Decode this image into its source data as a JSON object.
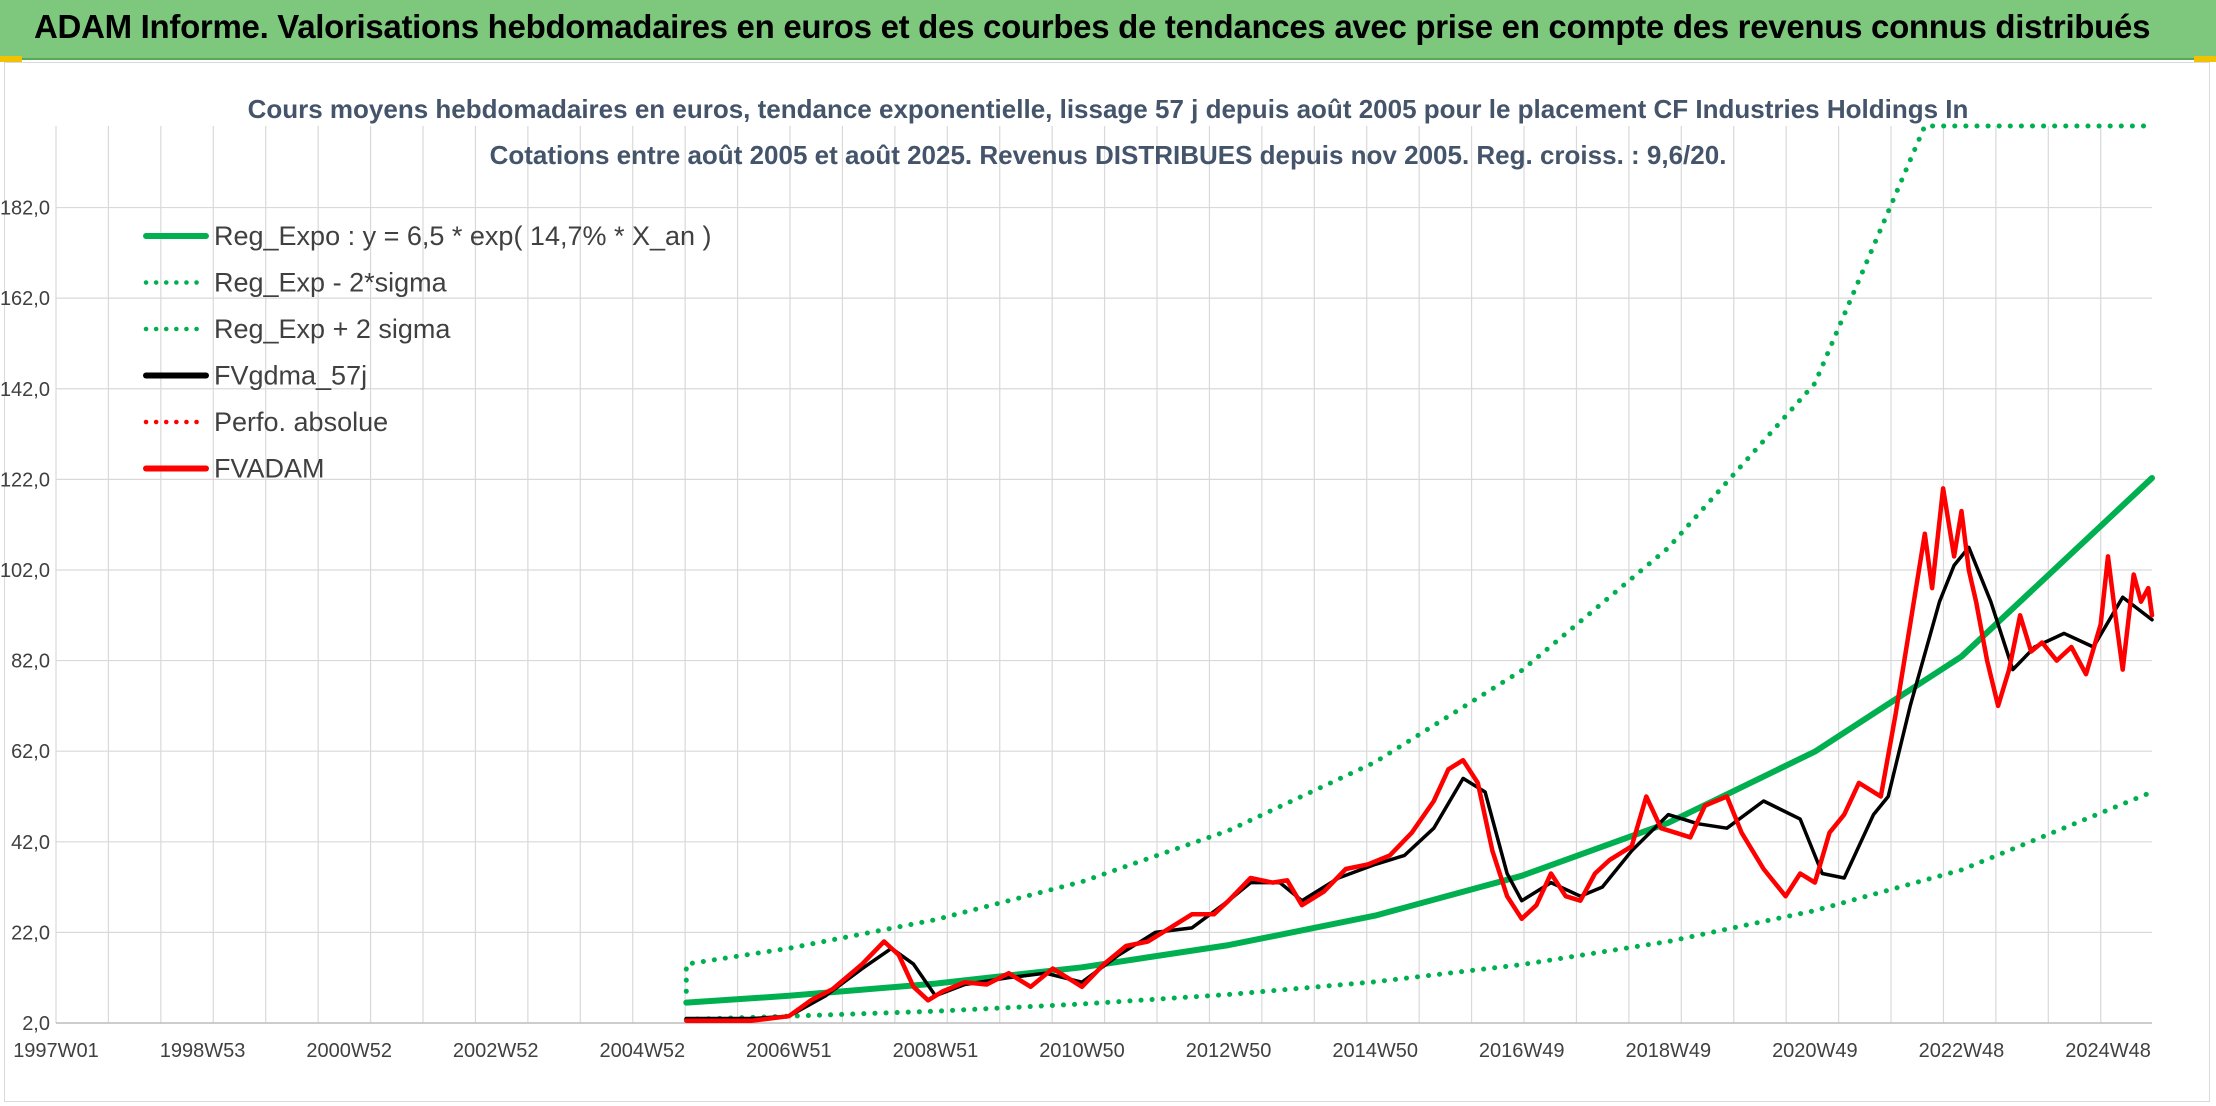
{
  "header": {
    "title": "ADAM Informe. Valorisations hebdomadaires en euros et des courbes de tendances avec prise en compte des revenus connus distribués"
  },
  "colors": {
    "banner": "#7ec87e",
    "trend": "#00b050",
    "price": "#ff0000",
    "smooth": "#000000",
    "grid": "#d9d9d9"
  },
  "chart_data": {
    "type": "line",
    "title_lines": [
      "Cours moyens hebdomadaires en euros, tendance exponentielle, lissage 57 j depuis août 2005 pour le placement CF Industries Holdings In",
      "Cotations entre août 2005 et août 2025. Revenus DISTRIBUES depuis nov 2005. Reg. croiss. : 9,6/20."
    ],
    "xlabel": "",
    "ylabel": "",
    "ylim": [
      2,
      200
    ],
    "xlim": [
      1997.0,
      2025.6
    ],
    "grid": true,
    "legend_position": "top-left",
    "y_ticks": [
      "2,0",
      "22,0",
      "42,0",
      "62,0",
      "82,0",
      "102,0",
      "122,0",
      "142,0",
      "162,0",
      "182,0"
    ],
    "x_ticks": [
      {
        "label": "1997W01",
        "x": 1997.0
      },
      {
        "label": "1998W53",
        "x": 1999.0
      },
      {
        "label": "2000W52",
        "x": 2001.0
      },
      {
        "label": "2002W52",
        "x": 2003.0
      },
      {
        "label": "2004W52",
        "x": 2005.0
      },
      {
        "label": "2006W51",
        "x": 2007.0
      },
      {
        "label": "2008W51",
        "x": 2009.0
      },
      {
        "label": "2010W50",
        "x": 2011.0
      },
      {
        "label": "2012W50",
        "x": 2013.0
      },
      {
        "label": "2014W50",
        "x": 2015.0
      },
      {
        "label": "2016W49",
        "x": 2017.0
      },
      {
        "label": "2018W49",
        "x": 2019.0
      },
      {
        "label": "2020W49",
        "x": 2021.0
      },
      {
        "label": "2022W48",
        "x": 2023.0
      },
      {
        "label": "2024W48",
        "x": 2025.0
      }
    ],
    "series": [
      {
        "name": "Reg_Expo : y = 6,5 * exp( 14,7% *  X_an )",
        "style": "solid",
        "color": "#00b050",
        "x": [
          2005.6,
          2007,
          2009,
          2011,
          2013,
          2015,
          2017,
          2019,
          2021,
          2023,
          2025.6
        ],
        "y": [
          6.5,
          8.0,
          10.7,
          14.3,
          19.2,
          25.7,
          34.5,
          46.2,
          61.9,
          82.9,
          122.3
        ]
      },
      {
        "name": "Reg_Exp - 2*sigma",
        "style": "dotted",
        "color": "#00b050",
        "x": [
          2005.6,
          2007,
          2009,
          2011,
          2013,
          2015,
          2017,
          2019,
          2021,
          2023,
          2025.6
        ],
        "y": [
          2.8,
          3.5,
          4.6,
          6.2,
          8.3,
          11.1,
          14.9,
          20.0,
          26.8,
          35.8,
          53.0
        ]
      },
      {
        "name": "Reg_Exp + 2 sigma",
        "style": "dotted",
        "color": "#00b050",
        "x": [
          2005.6,
          2005.6,
          2007,
          2009,
          2011,
          2013,
          2015,
          2017,
          2019,
          2021,
          2022.5,
          2023,
          2025.6
        ],
        "y": [
          9.0,
          15.0,
          18.5,
          24.8,
          33.2,
          44.5,
          59.6,
          79.8,
          106.9,
          143.2,
          200.0,
          200.0,
          200.0
        ]
      },
      {
        "name": "FVgdma_57j",
        "style": "solid",
        "color": "#000000",
        "x": [
          2005.6,
          2006.5,
          2007.0,
          2007.5,
          2008.0,
          2008.4,
          2008.7,
          2009.0,
          2009.4,
          2010.0,
          2010.5,
          2011.0,
          2011.5,
          2012.0,
          2012.5,
          2013.0,
          2013.3,
          2013.7,
          2014.0,
          2014.5,
          2015.0,
          2015.4,
          2015.8,
          2016.2,
          2016.5,
          2016.8,
          2017.0,
          2017.4,
          2017.8,
          2018.1,
          2018.5,
          2019.0,
          2019.4,
          2019.8,
          2020.3,
          2020.8,
          2021.1,
          2021.4,
          2021.8,
          2022.0,
          2022.3,
          2022.7,
          2022.9,
          2023.1,
          2023.4,
          2023.7,
          2024.0,
          2024.4,
          2024.8,
          2025.2,
          2025.6
        ],
        "y": [
          3.0,
          3.0,
          3.5,
          8.0,
          14.0,
          18.5,
          15.0,
          8.0,
          10.5,
          12.0,
          13.0,
          11.0,
          17.0,
          22.0,
          23.0,
          29.0,
          33.0,
          33.0,
          29.0,
          34.0,
          37.0,
          39.0,
          45.0,
          56.0,
          53.0,
          35.0,
          29.0,
          33.0,
          30.0,
          32.0,
          40.0,
          48.0,
          46.0,
          45.0,
          51.0,
          47.0,
          35.0,
          34.0,
          48.0,
          52.0,
          72.0,
          95.0,
          103.0,
          107.0,
          95.0,
          80.0,
          85.0,
          88.0,
          85.0,
          96.0,
          91.0
        ]
      },
      {
        "name": "Perfo. absolue",
        "style": "dotted",
        "color": "#ff0000",
        "x": [],
        "y": []
      },
      {
        "name": "FVADAM",
        "style": "solid",
        "color": "#ff0000",
        "x": [
          2005.6,
          2006.0,
          2006.5,
          2007.0,
          2007.3,
          2007.6,
          2008.0,
          2008.3,
          2008.5,
          2008.7,
          2008.9,
          2009.1,
          2009.4,
          2009.7,
          2010.0,
          2010.3,
          2010.6,
          2010.8,
          2011.0,
          2011.3,
          2011.6,
          2011.9,
          2012.2,
          2012.5,
          2012.8,
          2013.0,
          2013.3,
          2013.6,
          2013.8,
          2014.0,
          2014.3,
          2014.6,
          2014.9,
          2015.2,
          2015.5,
          2015.8,
          2016.0,
          2016.2,
          2016.4,
          2016.6,
          2016.8,
          2017.0,
          2017.2,
          2017.4,
          2017.6,
          2017.8,
          2018.0,
          2018.2,
          2018.5,
          2018.7,
          2018.9,
          2019.1,
          2019.3,
          2019.5,
          2019.8,
          2020.0,
          2020.3,
          2020.6,
          2020.8,
          2021.0,
          2021.2,
          2021.4,
          2021.6,
          2021.9,
          2022.1,
          2022.3,
          2022.5,
          2022.6,
          2022.75,
          2022.9,
          2023.0,
          2023.1,
          2023.2,
          2023.35,
          2023.5,
          2023.65,
          2023.8,
          2023.95,
          2024.1,
          2024.3,
          2024.5,
          2024.7,
          2024.9,
          2025.0,
          2025.1,
          2025.2,
          2025.35,
          2025.45,
          2025.55,
          2025.6
        ],
        "y": [
          2.5,
          2.5,
          2.5,
          3.5,
          7.0,
          9.5,
          15.0,
          20.0,
          17.0,
          10.0,
          7.0,
          9.0,
          11.0,
          10.5,
          13.0,
          10.0,
          14.0,
          12.0,
          10.0,
          15.0,
          19.0,
          20.0,
          23.0,
          26.0,
          26.0,
          29.0,
          34.0,
          33.0,
          33.5,
          28.0,
          31.0,
          36.0,
          37.0,
          39.0,
          44.0,
          51.0,
          58.0,
          60.0,
          55.0,
          40.0,
          30.0,
          25.0,
          28.0,
          35.0,
          30.0,
          29.0,
          35.0,
          38.0,
          41.0,
          52.0,
          45.0,
          44.0,
          43.0,
          50.0,
          52.0,
          44.0,
          36.0,
          30.0,
          35.0,
          33.0,
          44.0,
          48.0,
          55.0,
          52.0,
          70.0,
          90.0,
          110.0,
          98.0,
          120.0,
          105.0,
          115.0,
          102.0,
          95.0,
          82.0,
          72.0,
          80.0,
          92.0,
          84.0,
          86.0,
          82.0,
          85.0,
          79.0,
          90.0,
          105.0,
          92.0,
          80.0,
          101.0,
          95.0,
          98.0,
          92.0
        ]
      }
    ]
  }
}
